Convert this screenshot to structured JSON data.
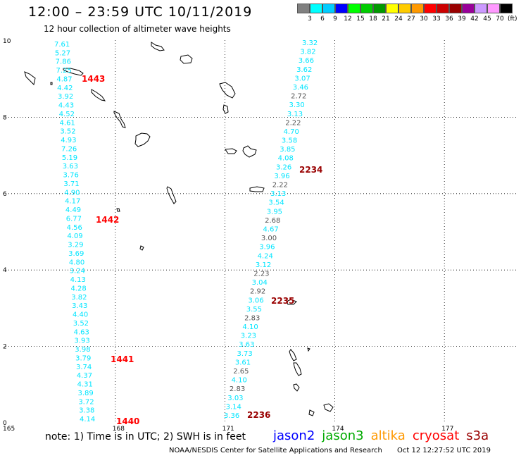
{
  "title": "12:00 – 23:59 UTC 10/11/2019",
  "subtitle": "12 hour collection of altimeter wave heights",
  "legend": {
    "colors": [
      "#808080",
      "#00ffff",
      "#00ccff",
      "#0000ff",
      "#00ff00",
      "#00cc00",
      "#009900",
      "#ffff00",
      "#ffcc00",
      "#ff9900",
      "#ff0000",
      "#cc0000",
      "#990000",
      "#990099",
      "#cc99ff",
      "#ff99ff",
      "#000000"
    ],
    "labels": [
      "3",
      "6",
      "9",
      "12",
      "15",
      "18",
      "21",
      "24",
      "27",
      "30",
      "33",
      "36",
      "39",
      "42",
      "45",
      "70"
    ],
    "unit": "(ft)"
  },
  "axes": {
    "x_ticks": [
      "165",
      "168",
      "171",
      "174",
      "177"
    ],
    "y_ticks": [
      "0",
      "2",
      "4",
      "6",
      "8",
      "10"
    ]
  },
  "track_a": {
    "color": "#00e5ff",
    "values": [
      "7.61",
      "5.27",
      "7.86",
      "7.25",
      "4.87",
      "4.42",
      "3.92",
      "4.43",
      "4.52",
      "4.61",
      "3.52",
      "4.93",
      "7.26",
      "5.19",
      "3.63",
      "3.76",
      "3.71",
      "4.90",
      "4.17",
      "4.49",
      "6.77",
      "4.56",
      "4.09",
      "3.29",
      "3.69",
      "4.80",
      "3.24",
      "4.13",
      "4.28",
      "3.82",
      "3.43",
      "4.40",
      "3.52",
      "4.63",
      "3.93",
      "3.98",
      "3.79",
      "3.74",
      "4.37",
      "4.31",
      "3.89",
      "3.72",
      "3.38",
      "4.14"
    ]
  },
  "track_b": {
    "values": [
      "3.32",
      "3.82",
      "3.66",
      "3.62",
      "3.07",
      "3.46",
      "2.72",
      "3.30",
      "3.13",
      "2.22",
      "4.70",
      "3.58",
      "3.85",
      "4.08",
      "3.26",
      "3.96",
      "2.22",
      "3.13",
      "3.54",
      "3.95",
      "2.68",
      "4.67",
      "3.00",
      "3.96",
      "4.24",
      "3.12",
      "2.23",
      "3.04",
      "2.92",
      "3.06",
      "3.55",
      "2.83",
      "4.10",
      "3.23",
      "3.63",
      "3.73",
      "3.61",
      "2.65",
      "4.10",
      "2.83",
      "3.03",
      "3.14",
      "3.36"
    ],
    "gray_values": [
      "2.72",
      "2.22",
      "2.68",
      "3.00",
      "2.23",
      "2.92",
      "2.83",
      "2.65",
      "2.83"
    ]
  },
  "time_labels_a": [
    "1443",
    "1442",
    "1441",
    "1440"
  ],
  "time_labels_b": [
    "2234",
    "2235",
    "2236"
  ],
  "note": "note:  1) Time is in UTC;  2) SWH is in feet",
  "satellites": [
    {
      "name": "jason2",
      "color": "#0000ff"
    },
    {
      "name": "jason3",
      "color": "#00aa00"
    },
    {
      "name": "altika",
      "color": "#ff9900"
    },
    {
      "name": "cryosat",
      "color": "#ff0000"
    },
    {
      "name": "s3a",
      "color": "#990000"
    }
  ],
  "footer": {
    "credit": "NOAA/NESDIS Center for Satellite Applications and Research",
    "timestamp": "Oct 12 12:27:52 UTC 2019"
  }
}
